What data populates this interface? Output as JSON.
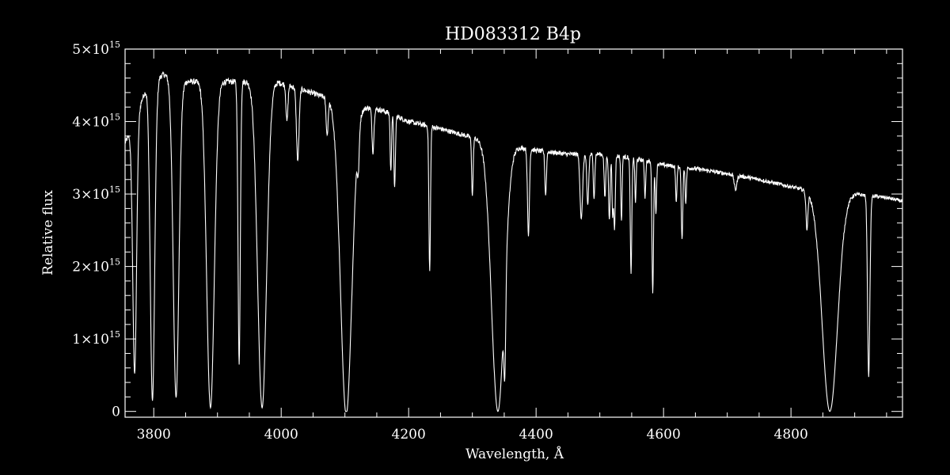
{
  "chart_data": {
    "type": "line",
    "title": "HD083312  B4p",
    "xlabel": "Wavelength, Å",
    "ylabel": "Relative flux",
    "xlim": [
      3755,
      4975
    ],
    "ylim": [
      -80000000000000.0,
      5000000000000000.0
    ],
    "x_ticks": [
      3800,
      4000,
      4200,
      4400,
      4600,
      4800
    ],
    "x_tick_labels": [
      "3800",
      "4000",
      "4200",
      "4400",
      "4600",
      "4800"
    ],
    "y_ticks": [
      0,
      1000000000000000.0,
      2000000000000000.0,
      3000000000000000.0,
      4000000000000000.0,
      5000000000000000.0
    ],
    "y_tick_labels": [
      {
        "mantissa": "0",
        "exp": ""
      },
      {
        "mantissa": "1×10",
        "exp": "15"
      },
      {
        "mantissa": "2×10",
        "exp": "15"
      },
      {
        "mantissa": "3×10",
        "exp": "15"
      },
      {
        "mantissa": "4×10",
        "exp": "15"
      },
      {
        "mantissa": "5×10",
        "exp": "15"
      }
    ],
    "grid": false,
    "colors": {
      "background": "#000000",
      "line": "#ffffff",
      "axes": "#ffffff"
    },
    "series": [
      {
        "continuum_anchors": [
          [
            3755,
            3700000000000000.0
          ],
          [
            3765,
            3900000000000000.0
          ],
          [
            3790,
            4500000000000000.0
          ],
          [
            3815,
            4650000000000000.0
          ],
          [
            3850,
            4550000000000000.0
          ],
          [
            3900,
            4550000000000000.0
          ],
          [
            3950,
            4550000000000000.0
          ],
          [
            3990,
            4550000000000000.0
          ],
          [
            4030,
            4450000000000000.0
          ],
          [
            4080,
            4300000000000000.0
          ],
          [
            4130,
            4200000000000000.0
          ],
          [
            4160,
            4150000000000000.0
          ],
          [
            4200,
            4000000000000000.0
          ],
          [
            4250,
            3900000000000000.0
          ],
          [
            4300,
            3780000000000000.0
          ],
          [
            4340,
            3700000000000000.0
          ],
          [
            4400,
            3600000000000000.0
          ],
          [
            4450,
            3550000000000000.0
          ],
          [
            4500,
            3550000000000000.0
          ],
          [
            4550,
            3500000000000000.0
          ],
          [
            4600,
            3400000000000000.0
          ],
          [
            4650,
            3350000000000000.0
          ],
          [
            4700,
            3280000000000000.0
          ],
          [
            4750,
            3200000000000000.0
          ],
          [
            4800,
            3100000000000000.0
          ],
          [
            4850,
            3000000000000000.0
          ],
          [
            4900,
            3000000000000000.0
          ],
          [
            4950,
            2950000000000000.0
          ],
          [
            4975,
            2900000000000000.0
          ]
        ],
        "absorption_lines": [
          [
            3770,
            3500000000000000.0,
            3.0
          ],
          [
            3798,
            4400000000000000.0,
            3.5
          ],
          [
            3835,
            4400000000000000.0,
            4.5
          ],
          [
            3889,
            4500000000000000.0,
            6.0
          ],
          [
            3934,
            3900000000000000.0,
            1.8
          ],
          [
            3970,
            4500000000000000.0,
            7.0
          ],
          [
            4009,
            500000000000000.0,
            1.5
          ],
          [
            4026,
            1000000000000000.0,
            2.0
          ],
          [
            4072,
            500000000000000.0,
            1.5
          ],
          [
            4102,
            4300000000000000.0,
            9.0
          ],
          [
            4121,
            500000000000000.0,
            1.5
          ],
          [
            4144,
            600000000000000.0,
            1.5
          ],
          [
            4172,
            800000000000000.0,
            1.0
          ],
          [
            4178,
            1000000000000000.0,
            1.2
          ],
          [
            4233,
            2000000000000000.0,
            1.2
          ],
          [
            4300,
            800000000000000.0,
            1.2
          ],
          [
            4340,
            3700000000000000.0,
            10.0
          ],
          [
            4351,
            1200000000000000.0,
            1.5
          ],
          [
            4388,
            1200000000000000.0,
            1.5
          ],
          [
            4415,
            600000000000000.0,
            1.2
          ],
          [
            4471,
            900000000000000.0,
            2.0
          ],
          [
            4481,
            700000000000000.0,
            1.5
          ],
          [
            4491,
            600000000000000.0,
            1.2
          ],
          [
            4508,
            600000000000000.0,
            1.2
          ],
          [
            4515,
            900000000000000.0,
            1.2
          ],
          [
            4520,
            800000000000000.0,
            1.0
          ],
          [
            4523,
            1000000000000000.0,
            1.2
          ],
          [
            4534,
            900000000000000.0,
            1.0
          ],
          [
            4549,
            1600000000000000.0,
            1.2
          ],
          [
            4556,
            600000000000000.0,
            1.0
          ],
          [
            4571,
            500000000000000.0,
            1.0
          ],
          [
            4583,
            1800000000000000.0,
            1.2
          ],
          [
            4588,
            700000000000000.0,
            1.0
          ],
          [
            4620,
            500000000000000.0,
            1.0
          ],
          [
            4629,
            1000000000000000.0,
            1.2
          ],
          [
            4635,
            500000000000000.0,
            1.0
          ],
          [
            4713,
            200000000000000.0,
            2.0
          ],
          [
            4825,
            500000000000000.0,
            1.5
          ],
          [
            4861,
            3000000000000000.0,
            12.0
          ],
          [
            4922,
            2500000000000000.0,
            1.8
          ]
        ]
      }
    ]
  }
}
